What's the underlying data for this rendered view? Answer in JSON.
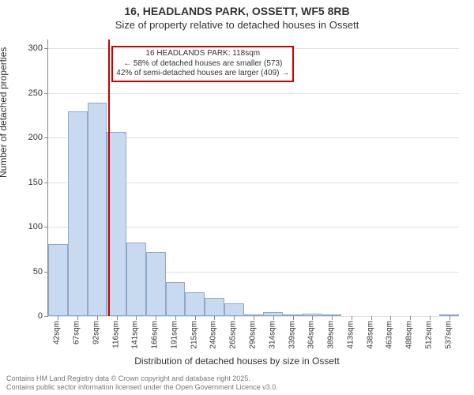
{
  "title": "16, HEADLANDS PARK, OSSETT, WF5 8RB",
  "subtitle": "Size of property relative to detached houses in Ossett",
  "chart": {
    "type": "histogram",
    "xlabel": "Distribution of detached houses by size in Ossett",
    "ylabel": "Number of detached properties",
    "ylim": [
      0,
      310
    ],
    "yticks": [
      0,
      50,
      100,
      150,
      200,
      250,
      300
    ],
    "xticks": [
      "42sqm",
      "67sqm",
      "92sqm",
      "116sqm",
      "141sqm",
      "166sqm",
      "191sqm",
      "215sqm",
      "240sqm",
      "265sqm",
      "290sqm",
      "314sqm",
      "339sqm",
      "364sqm",
      "389sqm",
      "413sqm",
      "438sqm",
      "463sqm",
      "488sqm",
      "512sqm",
      "537sqm"
    ],
    "values": [
      81,
      229,
      239,
      206,
      82,
      72,
      38,
      27,
      20,
      14,
      2,
      4,
      2,
      3,
      2,
      0,
      0,
      0,
      0,
      0,
      1
    ],
    "bar_fill": "#c8daf0",
    "bar_stroke": "#8fa8c8",
    "grid_color": "#e0e0e0",
    "axis_color": "#888888",
    "background_color": "#ffffff",
    "label_fontsize": 12,
    "tick_fontsize": 11,
    "xtick_fontsize": 10
  },
  "marker": {
    "color": "#cc0000",
    "position_index": 3.08,
    "callout_line1": "16 HEADLANDS PARK: 118sqm",
    "callout_line2": "← 58% of detached houses are smaller (573)",
    "callout_line3": "42% of semi-detached houses are larger (409) →"
  },
  "attribution": {
    "line1": "Contains HM Land Registry data © Crown copyright and database right 2025.",
    "line2": "Contains public sector information licensed under the Open Government Licence v3.0."
  }
}
